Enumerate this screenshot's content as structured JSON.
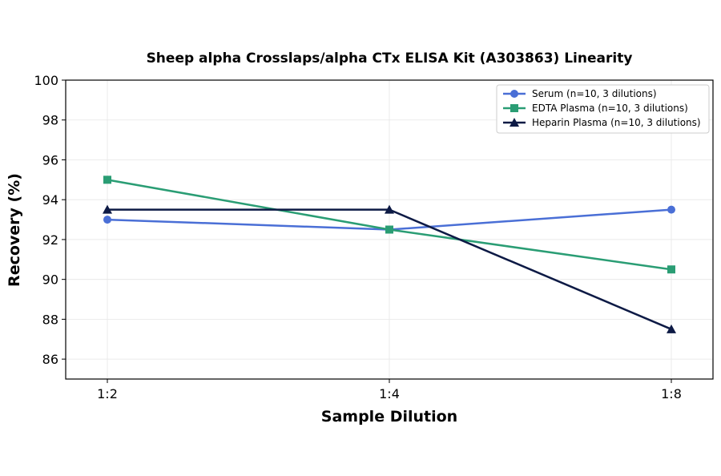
{
  "chart_data": {
    "type": "line",
    "title": "Sheep alpha Crosslaps/alpha CTx ELISA Kit (A303863) Linearity",
    "xlabel": "Sample Dilution",
    "ylabel": "Recovery (%)",
    "categories": [
      "1:2",
      "1:4",
      "1:8"
    ],
    "ylim": [
      85,
      100
    ],
    "yticks": [
      86,
      88,
      90,
      92,
      94,
      96,
      98,
      100
    ],
    "grid": true,
    "legend_position": "top-right",
    "series": [
      {
        "name": "Serum (n=10, 3 dilutions)",
        "values": [
          93.0,
          92.5,
          93.5
        ],
        "color": "#4a6fd6",
        "marker": "circle"
      },
      {
        "name": "EDTA Plasma (n=10, 3 dilutions)",
        "values": [
          95.0,
          92.5,
          90.5
        ],
        "color": "#2a9d74",
        "marker": "square"
      },
      {
        "name": "Heparin Plasma (n=10, 3 dilutions)",
        "values": [
          93.5,
          93.5,
          87.5
        ],
        "color": "#0d1a45",
        "marker": "triangle"
      }
    ]
  }
}
